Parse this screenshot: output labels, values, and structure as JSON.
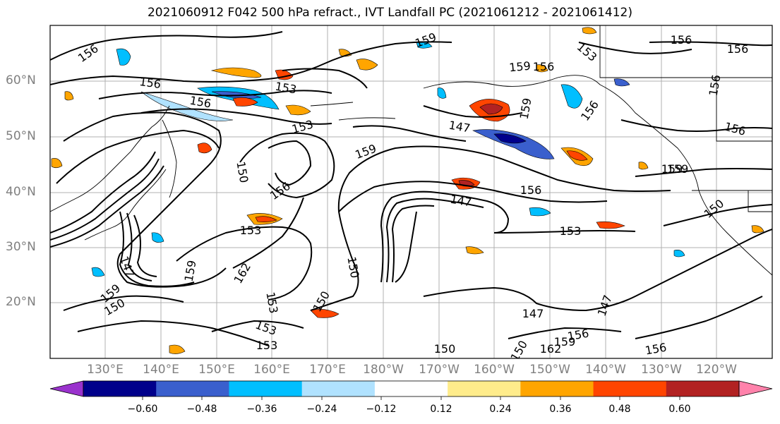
{
  "title": "2021060912 F042 500 hPa refract., IVT Landfall PC (2021061212 - 2021061412)",
  "lat_labels": [
    "60°N",
    "50°N",
    "40°N",
    "30°N",
    "20°N"
  ],
  "lon_labels": [
    "130°E",
    "140°E",
    "150°E",
    "160°E",
    "170°E",
    "180°W",
    "170°W",
    "160°W",
    "150°W",
    "140°W",
    "130°W",
    "120°W"
  ],
  "contour_labels": [
    "156",
    "159",
    "156",
    "156",
    "159",
    "156",
    "153",
    "156",
    "153",
    "153",
    "159",
    "156",
    "150",
    "156",
    "147",
    "153",
    "153",
    "159",
    "162",
    "147",
    "156",
    "159",
    "150",
    "153",
    "150",
    "153",
    "159",
    "150",
    "147",
    "156",
    "159",
    "150",
    "162",
    "150",
    "156",
    "156",
    "159",
    "156",
    "147",
    "147",
    "159",
    "150",
    "153",
    "156"
  ],
  "colorbar": {
    "colors": [
      "#9a32cd",
      "#00008b",
      "#3a5fcd",
      "#00bfff",
      "#b0e2ff",
      "#ffffff",
      "#ffec8b",
      "#ffa500",
      "#ff4500",
      "#b22222",
      "#ff82ab"
    ],
    "tick_labels": [
      "−0.60",
      "−0.48",
      "−0.36",
      "−0.24",
      "−0.12",
      "0.12",
      "0.24",
      "0.36",
      "0.48",
      "0.60"
    ]
  }
}
